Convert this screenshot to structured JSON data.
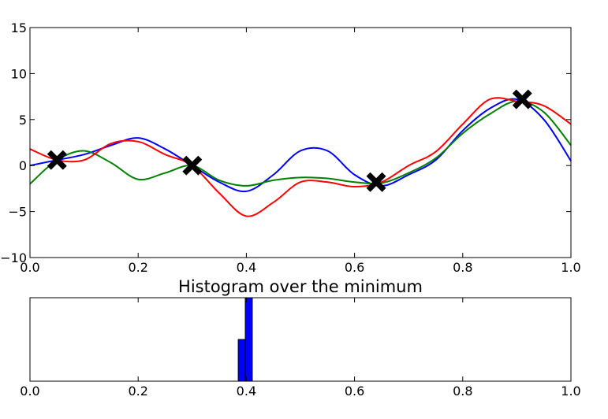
{
  "chart_data": [
    {
      "type": "line",
      "title": "",
      "xlabel": "",
      "ylabel": "",
      "xlim": [
        0.0,
        1.0
      ],
      "ylim": [
        -10,
        15
      ],
      "x_ticks": [
        "0.0",
        "0.2",
        "0.4",
        "0.6",
        "0.8",
        "1.0"
      ],
      "y_ticks": [
        "15",
        "10",
        "5",
        "0",
        "−5",
        "−10"
      ],
      "grid": false,
      "series": [
        {
          "color": "#0000ff",
          "x": [
            0.0,
            0.05,
            0.1,
            0.15,
            0.2,
            0.25,
            0.3,
            0.35,
            0.4,
            0.45,
            0.5,
            0.55,
            0.6,
            0.65,
            0.7,
            0.75,
            0.8,
            0.85,
            0.9,
            0.95,
            1.0
          ],
          "y": [
            0.0,
            0.6,
            1.2,
            2.2,
            3.0,
            1.8,
            0.0,
            -1.8,
            -2.8,
            -1.0,
            1.6,
            1.6,
            -1.0,
            -2.2,
            -1.0,
            0.6,
            3.8,
            6.2,
            7.2,
            5.0,
            0.5
          ]
        },
        {
          "color": "#008000",
          "x": [
            0.0,
            0.05,
            0.1,
            0.15,
            0.2,
            0.25,
            0.3,
            0.35,
            0.4,
            0.45,
            0.5,
            0.55,
            0.6,
            0.65,
            0.7,
            0.75,
            0.8,
            0.85,
            0.9,
            0.95,
            1.0
          ],
          "y": [
            -2.0,
            0.6,
            1.6,
            0.3,
            -1.5,
            -0.8,
            0.0,
            -1.6,
            -2.2,
            -1.6,
            -1.3,
            -1.4,
            -1.8,
            -1.9,
            -0.8,
            0.8,
            3.5,
            5.6,
            7.0,
            5.8,
            2.2
          ]
        },
        {
          "color": "#ff0000",
          "x": [
            0.0,
            0.05,
            0.1,
            0.15,
            0.2,
            0.25,
            0.3,
            0.35,
            0.4,
            0.45,
            0.5,
            0.55,
            0.6,
            0.65,
            0.7,
            0.75,
            0.8,
            0.85,
            0.9,
            0.95,
            1.0
          ],
          "y": [
            1.8,
            0.6,
            0.6,
            2.4,
            2.6,
            1.2,
            0.0,
            -3.0,
            -5.5,
            -4.0,
            -1.8,
            -1.8,
            -2.3,
            -1.8,
            0.0,
            1.5,
            4.5,
            7.2,
            7.0,
            6.5,
            4.5
          ]
        }
      ],
      "markers": [
        {
          "x": 0.05,
          "y": 0.6
        },
        {
          "x": 0.3,
          "y": 0.0
        },
        {
          "x": 0.64,
          "y": -1.8
        },
        {
          "x": 0.91,
          "y": 7.2
        }
      ]
    },
    {
      "type": "bar",
      "title": "Histogram over the minimum",
      "xlim": [
        0.0,
        1.0
      ],
      "x_ticks": [
        "0.0",
        "0.2",
        "0.4",
        "0.6",
        "0.8",
        "1.0"
      ],
      "bar_color": "#0000ff",
      "bins": [
        {
          "x0": 0.385,
          "x1": 0.398,
          "fraction": 0.5
        },
        {
          "x0": 0.398,
          "x1": 0.411,
          "fraction": 1.0
        }
      ]
    }
  ]
}
